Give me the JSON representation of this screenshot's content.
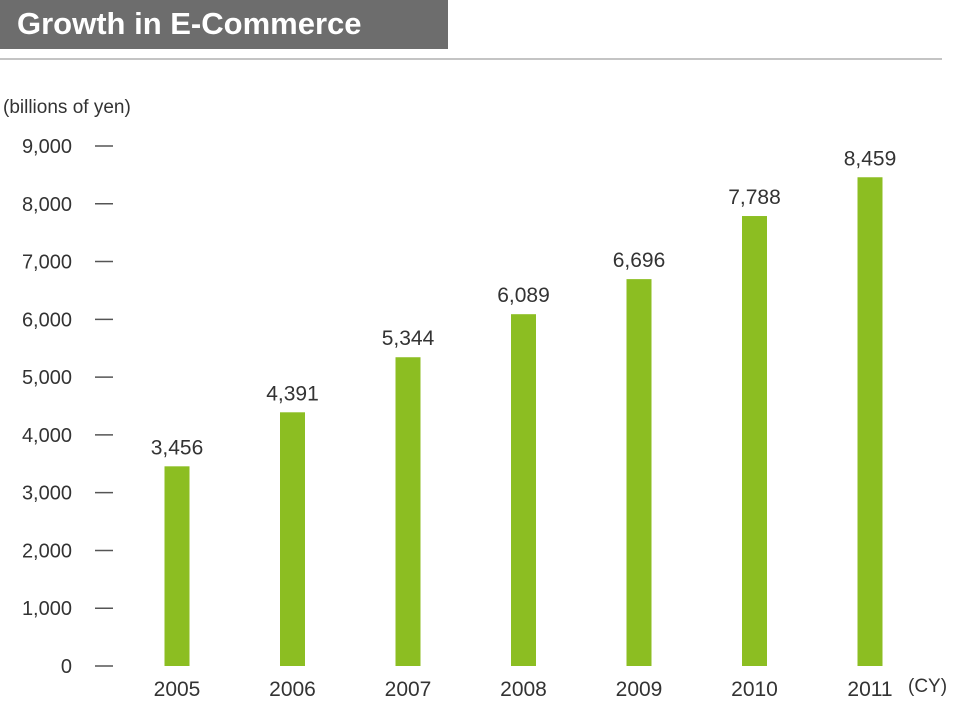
{
  "header": {
    "title": "Growth in E-Commerce"
  },
  "chart_data": {
    "type": "bar",
    "title": "Growth in E-Commerce",
    "unit_label": "(billions of yen)",
    "x_unit": "(CY)",
    "categories": [
      "2005",
      "2006",
      "2007",
      "2008",
      "2009",
      "2010",
      "2011"
    ],
    "values": [
      3456,
      4391,
      5344,
      6089,
      6696,
      7788,
      8459
    ],
    "value_labels": [
      "3,456",
      "4,391",
      "5,344",
      "6,089",
      "6,696",
      "7,788",
      "8,459"
    ],
    "yticks": [
      0,
      1000,
      2000,
      3000,
      4000,
      5000,
      6000,
      7000,
      8000,
      9000
    ],
    "ytick_labels": [
      "0",
      "1,000",
      "2,000",
      "3,000",
      "4,000",
      "5,000",
      "6,000",
      "7,000",
      "8,000",
      "9,000"
    ],
    "ylim": [
      0,
      9000
    ],
    "grid": false,
    "bar_color": "#8cbe22",
    "text_color": "#333333",
    "title_bar_color": "#6d6d6d"
  }
}
